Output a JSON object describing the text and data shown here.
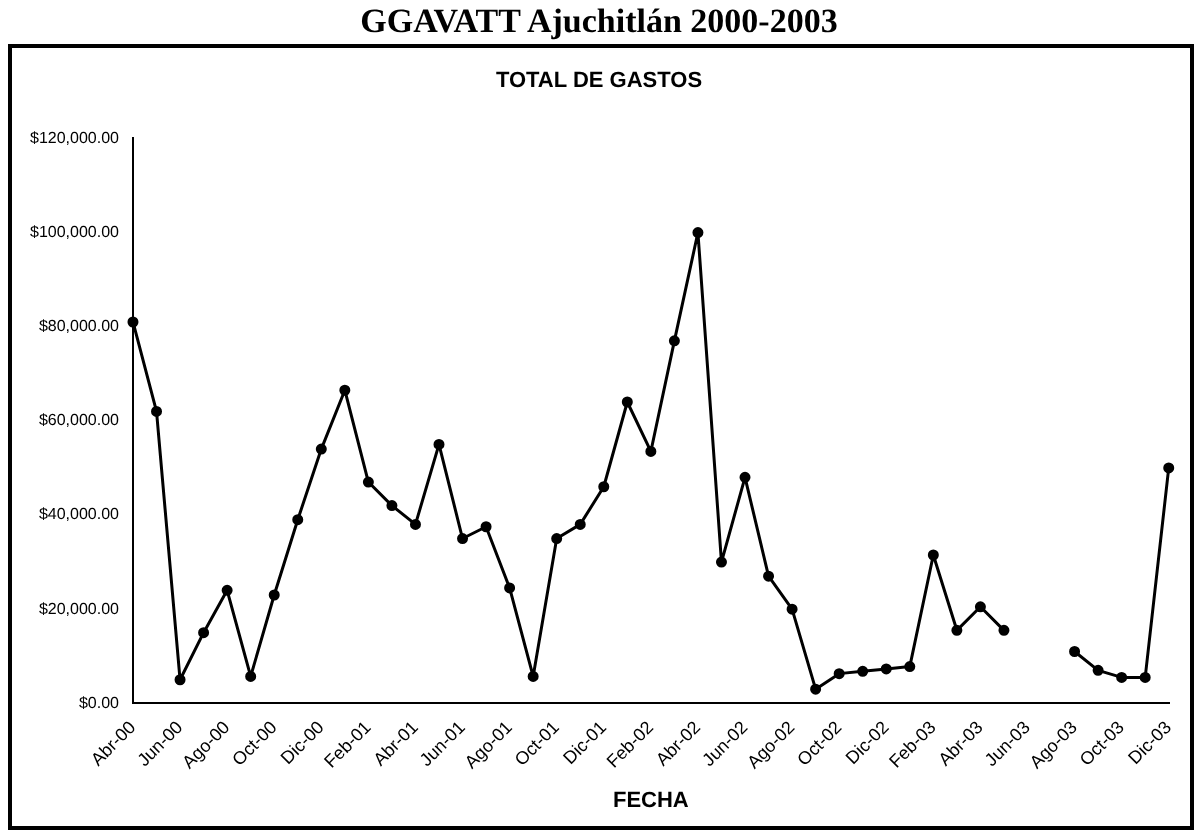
{
  "chart_data": {
    "type": "line",
    "title": "GGAVATT Ajuchitlán 2000-2003",
    "subtitle": "TOTAL DE GASTOS",
    "xlabel": "FECHA",
    "categories": [
      "Abr-00",
      null,
      "Jun-00",
      null,
      "Ago-00",
      null,
      "Oct-00",
      null,
      "Dic-00",
      null,
      "Feb-01",
      null,
      "Abr-01",
      null,
      "Jun-01",
      null,
      "Ago-01",
      null,
      "Oct-01",
      null,
      "Dic-01",
      null,
      "Feb-02",
      null,
      "Abr-02",
      null,
      "Jun-02",
      null,
      "Ago-02",
      null,
      "Oct-02",
      null,
      "Dic-02",
      null,
      "Feb-03",
      null,
      "Abr-03",
      null,
      "Jun-03",
      null,
      "Ago-03",
      null,
      "Oct-03",
      null,
      "Dic-03"
    ],
    "series": [
      {
        "color": "#000000",
        "values": [
          81000,
          62000,
          5000,
          15000,
          24000,
          5700,
          23000,
          39000,
          54000,
          66500,
          47000,
          42000,
          38000,
          55000,
          35000,
          37500,
          24500,
          5700,
          35000,
          38000,
          46000,
          64000,
          53500,
          77000,
          100000,
          30000,
          48000,
          27000,
          20000,
          3000,
          6300,
          6800,
          7300,
          7800,
          31500,
          15500,
          20500,
          15500,
          null,
          null,
          11000,
          7000,
          5500,
          5500,
          50000
        ]
      }
    ],
    "ylim": [
      0,
      120000
    ],
    "yticks": [
      {
        "value": 0,
        "label": "$0.00"
      },
      {
        "value": 20000,
        "label": "$20,000.00"
      },
      {
        "value": 40000,
        "label": "$40,000.00"
      },
      {
        "value": 60000,
        "label": "$60,000.00"
      },
      {
        "value": 80000,
        "label": "$80,000.00"
      },
      {
        "value": 100000,
        "label": "$100,000.00"
      },
      {
        "value": 120000,
        "label": "$120,000.00"
      }
    ],
    "grid": false,
    "legend": false,
    "marker": "circle",
    "line_style": "solid"
  }
}
